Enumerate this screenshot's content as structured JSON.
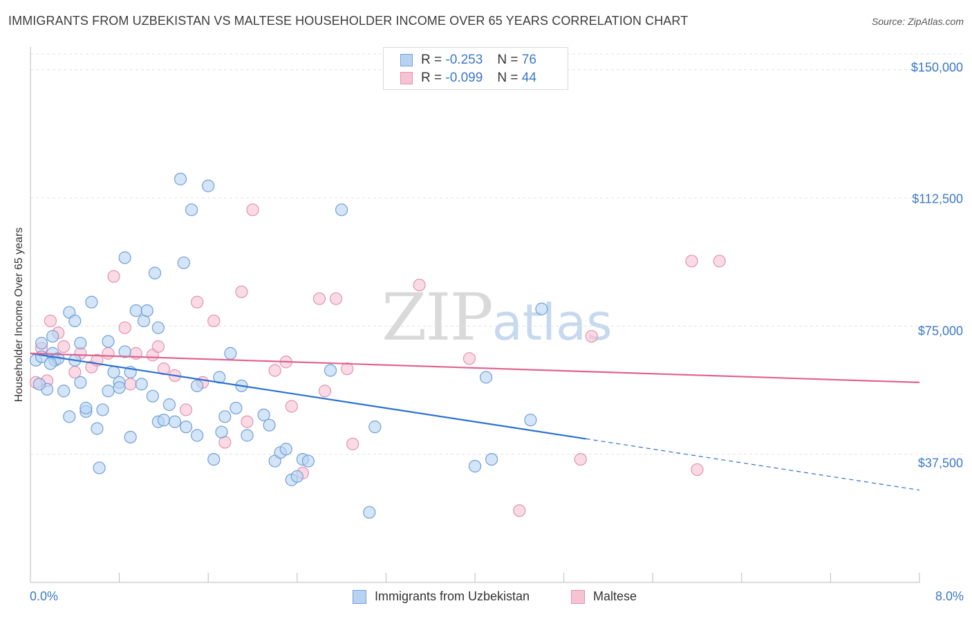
{
  "title": "IMMIGRANTS FROM UZBEKISTAN VS MALTESE HOUSEHOLDER INCOME OVER 65 YEARS CORRELATION CHART",
  "source": "Source: ZipAtlas.com",
  "watermark": {
    "zip": "ZIP",
    "atlas": "atlas"
  },
  "legend": {
    "rows": [
      {
        "r_label": "R =",
        "r_value": "-0.253",
        "n_label": "N =",
        "n_value": "76"
      },
      {
        "r_label": "R =",
        "r_value": "-0.099",
        "n_label": "N =",
        "n_value": "44"
      }
    ]
  },
  "colors": {
    "blue_fill": "#b8d3f2",
    "blue_stroke": "#6f9fd8",
    "blue_line": "#2a6fd1",
    "pink_fill": "#f6c3d3",
    "pink_stroke": "#e590ad",
    "pink_line": "#e0628f",
    "axis_text": "#3b78c8",
    "grid": "#e0e0e0"
  },
  "chart_data": {
    "type": "scatter",
    "title": "IMMIGRANTS FROM UZBEKISTAN VS MALTESE HOUSEHOLDER INCOME OVER 65 YEARS CORRELATION CHART",
    "xlabel": "",
    "ylabel": "Householder Income Over 65 years",
    "xlim": [
      0,
      8
    ],
    "ylim": [
      0,
      155000
    ],
    "x_tick_labels": [
      "0.0%",
      "8.0%"
    ],
    "y_ticks": [
      37500,
      75000,
      112500,
      150000
    ],
    "y_tick_labels": [
      "$37,500",
      "$75,000",
      "$112,500",
      "$150,000"
    ],
    "grid": "horizontal dashed",
    "legend_position": "top-center and bottom",
    "series": [
      {
        "name": "Immigrants from Uzbekistan",
        "color": "#b8d3f2",
        "trend": {
          "x": [
            0.0,
            5.0
          ],
          "y": [
            67000,
            42000
          ],
          "dashed_extension_to": [
            8.0,
            27000
          ]
        },
        "points": [
          [
            0.05,
            65000
          ],
          [
            0.1,
            66000
          ],
          [
            0.1,
            70000
          ],
          [
            0.15,
            56500
          ],
          [
            0.2,
            67000
          ],
          [
            0.2,
            72000
          ],
          [
            0.22,
            65000
          ],
          [
            0.25,
            65500
          ],
          [
            0.3,
            56000
          ],
          [
            0.35,
            79000
          ],
          [
            0.35,
            48500
          ],
          [
            0.4,
            76500
          ],
          [
            0.45,
            58500
          ],
          [
            0.45,
            70000
          ],
          [
            0.5,
            50000
          ],
          [
            0.5,
            51000
          ],
          [
            0.55,
            82000
          ],
          [
            0.6,
            45000
          ],
          [
            0.62,
            33500
          ],
          [
            0.65,
            50500
          ],
          [
            0.7,
            56000
          ],
          [
            0.7,
            70500
          ],
          [
            0.75,
            61500
          ],
          [
            0.8,
            58500
          ],
          [
            0.8,
            57000
          ],
          [
            0.85,
            67500
          ],
          [
            0.85,
            95000
          ],
          [
            0.9,
            42500
          ],
          [
            0.9,
            61500
          ],
          [
            0.95,
            79500
          ],
          [
            1.0,
            58000
          ],
          [
            1.02,
            76500
          ],
          [
            1.05,
            79500
          ],
          [
            1.1,
            54500
          ],
          [
            1.12,
            90500
          ],
          [
            1.15,
            47000
          ],
          [
            1.15,
            74500
          ],
          [
            1.2,
            47500
          ],
          [
            1.25,
            52000
          ],
          [
            1.3,
            47000
          ],
          [
            1.35,
            118000
          ],
          [
            1.38,
            93500
          ],
          [
            1.4,
            45500
          ],
          [
            1.45,
            109000
          ],
          [
            1.5,
            43000
          ],
          [
            1.5,
            57500
          ],
          [
            1.6,
            116000
          ],
          [
            1.65,
            36000
          ],
          [
            1.7,
            60000
          ],
          [
            1.72,
            44000
          ],
          [
            1.75,
            48500
          ],
          [
            1.8,
            67000
          ],
          [
            1.85,
            51000
          ],
          [
            1.9,
            57500
          ],
          [
            1.95,
            43000
          ],
          [
            2.1,
            49000
          ],
          [
            2.15,
            46000
          ],
          [
            2.2,
            35500
          ],
          [
            2.25,
            38000
          ],
          [
            2.3,
            39000
          ],
          [
            2.35,
            30000
          ],
          [
            2.4,
            31000
          ],
          [
            2.45,
            36000
          ],
          [
            2.5,
            35500
          ],
          [
            2.7,
            62000
          ],
          [
            2.8,
            109000
          ],
          [
            3.05,
            20500
          ],
          [
            3.1,
            45500
          ],
          [
            4.0,
            34000
          ],
          [
            4.1,
            60000
          ],
          [
            4.15,
            36000
          ],
          [
            4.5,
            47500
          ],
          [
            4.6,
            80000
          ],
          [
            0.08,
            58000
          ],
          [
            0.4,
            65000
          ],
          [
            0.18,
            64000
          ]
        ]
      },
      {
        "name": "Maltese",
        "color": "#f6c3d3",
        "trend": {
          "x": [
            0.0,
            8.0
          ],
          "y": [
            67000,
            58500
          ]
        },
        "points": [
          [
            0.05,
            58500
          ],
          [
            0.1,
            68500
          ],
          [
            0.18,
            76500
          ],
          [
            0.25,
            73000
          ],
          [
            0.3,
            69000
          ],
          [
            0.4,
            61500
          ],
          [
            0.45,
            67000
          ],
          [
            0.55,
            63000
          ],
          [
            0.6,
            65000
          ],
          [
            0.7,
            67000
          ],
          [
            0.75,
            89500
          ],
          [
            0.85,
            74500
          ],
          [
            0.9,
            58000
          ],
          [
            0.95,
            67000
          ],
          [
            1.1,
            66500
          ],
          [
            1.15,
            69000
          ],
          [
            1.2,
            62500
          ],
          [
            1.3,
            60500
          ],
          [
            1.4,
            50500
          ],
          [
            1.5,
            82000
          ],
          [
            1.55,
            58500
          ],
          [
            1.65,
            76500
          ],
          [
            1.75,
            41000
          ],
          [
            1.9,
            85000
          ],
          [
            1.95,
            47000
          ],
          [
            2.0,
            109000
          ],
          [
            2.2,
            62000
          ],
          [
            2.3,
            64500
          ],
          [
            2.35,
            51500
          ],
          [
            2.45,
            32000
          ],
          [
            2.6,
            83000
          ],
          [
            2.65,
            56000
          ],
          [
            2.75,
            83000
          ],
          [
            2.85,
            62500
          ],
          [
            2.9,
            40500
          ],
          [
            3.5,
            87000
          ],
          [
            3.95,
            65500
          ],
          [
            4.4,
            21000
          ],
          [
            4.95,
            36000
          ],
          [
            5.05,
            72000
          ],
          [
            5.95,
            94000
          ],
          [
            6.0,
            33000
          ],
          [
            6.2,
            94000
          ],
          [
            0.15,
            59000
          ]
        ]
      }
    ]
  },
  "bottom_legend": [
    "Immigrants from Uzbekistan",
    "Maltese"
  ]
}
